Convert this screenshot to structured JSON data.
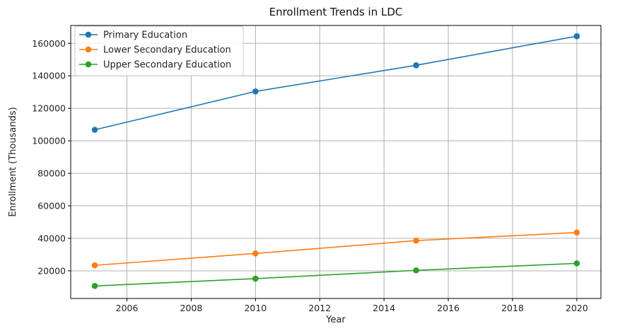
{
  "chart_data": {
    "type": "line",
    "title": "Enrollment Trends in LDC",
    "xlabel": "Year",
    "ylabel": "Enrollment (Thousands)",
    "x": [
      2005,
      2010,
      2015,
      2020
    ],
    "xlim": [
      2004.25,
      2020.75
    ],
    "ylim": [
      3000,
      171000
    ],
    "xticks": [
      2006,
      2008,
      2010,
      2012,
      2014,
      2016,
      2018,
      2020
    ],
    "yticks": [
      20000,
      40000,
      60000,
      80000,
      100000,
      120000,
      140000,
      160000
    ],
    "grid": true,
    "legend_position": "top-left",
    "series": [
      {
        "name": "Primary Education",
        "color": "#1f77b4",
        "values": [
          106800,
          130400,
          146500,
          164400
        ]
      },
      {
        "name": "Lower Secondary Education",
        "color": "#ff7f0e",
        "values": [
          23400,
          30700,
          38600,
          43600
        ]
      },
      {
        "name": "Upper Secondary Education",
        "color": "#2ca02c",
        "values": [
          10700,
          15200,
          20300,
          24600
        ]
      }
    ]
  }
}
